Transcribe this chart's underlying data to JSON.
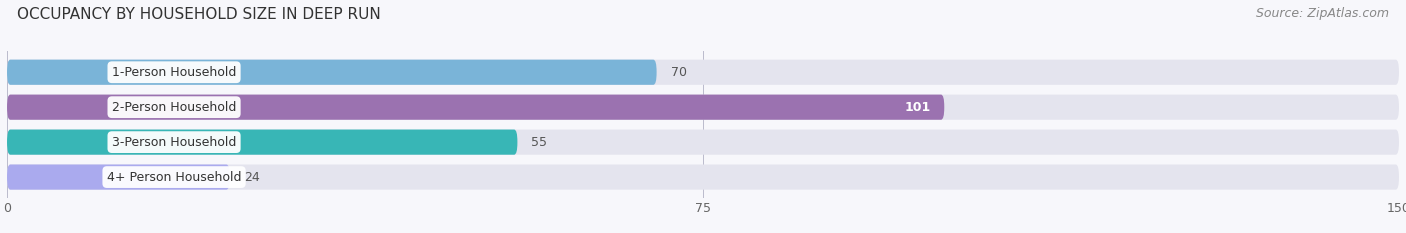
{
  "title": "OCCUPANCY BY HOUSEHOLD SIZE IN DEEP RUN",
  "source": "Source: ZipAtlas.com",
  "categories": [
    "1-Person Household",
    "2-Person Household",
    "3-Person Household",
    "4+ Person Household"
  ],
  "values": [
    70,
    101,
    55,
    24
  ],
  "bar_colors": [
    "#7ab4d8",
    "#9b72b0",
    "#38b6b6",
    "#aaaaee"
  ],
  "bar_bg_color": "#e4e4ee",
  "xlim": [
    0,
    150
  ],
  "xticks": [
    0,
    75,
    150
  ],
  "label_colors": [
    "#333333",
    "#ffffff",
    "#333333",
    "#333333"
  ],
  "fig_bg_color": "#f7f7fb",
  "title_fontsize": 11,
  "source_fontsize": 9,
  "bar_label_fontsize": 9,
  "category_fontsize": 9,
  "bar_height": 0.72,
  "rounding_size": 0.35
}
